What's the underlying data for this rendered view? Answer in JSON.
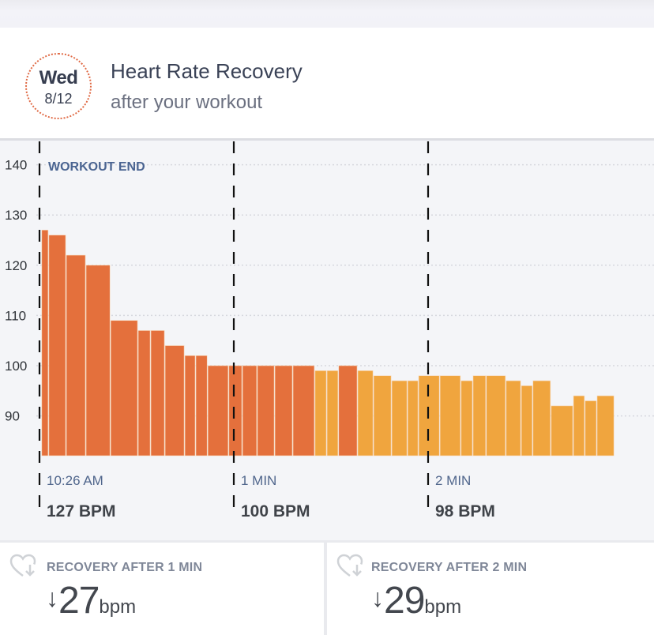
{
  "header": {
    "date_day": "Wed",
    "date_num": "8/12",
    "title": "Heart Rate Recovery",
    "subtitle": "after your workout"
  },
  "chart_data": {
    "type": "bar",
    "title": "Heart Rate Recovery",
    "xlabel": "",
    "ylabel": "BPM",
    "ylim": [
      82,
      145
    ],
    "xlim_seconds": [
      0,
      177
    ],
    "yticks": [
      140,
      130,
      120,
      110,
      100,
      90
    ],
    "grid": true,
    "annotation": "WORKOUT END",
    "markers": [
      {
        "t": 0,
        "label": "10:26 AM",
        "value_label": "127 BPM"
      },
      {
        "t": 60,
        "label": "1 MIN",
        "value_label": "100 BPM"
      },
      {
        "t": 120,
        "label": "2 MIN",
        "value_label": "98 BPM"
      }
    ],
    "colors": {
      "before_threshold": "#e4703c",
      "after_threshold": "#f0a53e"
    },
    "bars": [
      {
        "start": 0.7,
        "end": 2.9,
        "value": 127,
        "zone": "high"
      },
      {
        "start": 2.9,
        "end": 8.3,
        "value": 126,
        "zone": "high"
      },
      {
        "start": 8.3,
        "end": 14.4,
        "value": 122,
        "zone": "high"
      },
      {
        "start": 14.4,
        "end": 22.0,
        "value": 120,
        "zone": "high"
      },
      {
        "start": 22.0,
        "end": 30.5,
        "value": 109,
        "zone": "high"
      },
      {
        "start": 30.5,
        "end": 34.4,
        "value": 107,
        "zone": "high"
      },
      {
        "start": 34.4,
        "end": 38.8,
        "value": 107,
        "zone": "high"
      },
      {
        "start": 38.8,
        "end": 44.9,
        "value": 104,
        "zone": "high"
      },
      {
        "start": 44.9,
        "end": 48.3,
        "value": 102,
        "zone": "high"
      },
      {
        "start": 48.3,
        "end": 52.0,
        "value": 102,
        "zone": "high"
      },
      {
        "start": 52.0,
        "end": 58.5,
        "value": 100,
        "zone": "high"
      },
      {
        "start": 58.5,
        "end": 62.7,
        "value": 100,
        "zone": "high"
      },
      {
        "start": 62.7,
        "end": 67.3,
        "value": 100,
        "zone": "high"
      },
      {
        "start": 67.3,
        "end": 72.7,
        "value": 100,
        "zone": "high"
      },
      {
        "start": 72.7,
        "end": 78.3,
        "value": 100,
        "zone": "high"
      },
      {
        "start": 78.3,
        "end": 85.1,
        "value": 100,
        "zone": "high"
      },
      {
        "start": 85.1,
        "end": 88.8,
        "value": 99,
        "zone": "low"
      },
      {
        "start": 88.8,
        "end": 92.4,
        "value": 99,
        "zone": "low"
      },
      {
        "start": 92.4,
        "end": 98.3,
        "value": 100,
        "zone": "high"
      },
      {
        "start": 98.3,
        "end": 103.2,
        "value": 99,
        "zone": "low"
      },
      {
        "start": 103.2,
        "end": 108.8,
        "value": 98,
        "zone": "low"
      },
      {
        "start": 108.8,
        "end": 113.7,
        "value": 97,
        "zone": "low"
      },
      {
        "start": 113.7,
        "end": 117.1,
        "value": 97,
        "zone": "low"
      },
      {
        "start": 117.1,
        "end": 123.7,
        "value": 98,
        "zone": "low"
      },
      {
        "start": 123.7,
        "end": 130.2,
        "value": 98,
        "zone": "low"
      },
      {
        "start": 130.2,
        "end": 133.9,
        "value": 97,
        "zone": "low"
      },
      {
        "start": 133.9,
        "end": 138.0,
        "value": 98,
        "zone": "low"
      },
      {
        "start": 138.0,
        "end": 144.1,
        "value": 98,
        "zone": "low"
      },
      {
        "start": 144.1,
        "end": 148.8,
        "value": 97,
        "zone": "low"
      },
      {
        "start": 148.8,
        "end": 152.4,
        "value": 96,
        "zone": "low"
      },
      {
        "start": 152.4,
        "end": 158.0,
        "value": 97,
        "zone": "low"
      },
      {
        "start": 158.0,
        "end": 164.9,
        "value": 92,
        "zone": "low"
      },
      {
        "start": 164.9,
        "end": 168.5,
        "value": 94,
        "zone": "low"
      },
      {
        "start": 168.5,
        "end": 172.2,
        "value": 93,
        "zone": "low"
      },
      {
        "start": 172.2,
        "end": 177.6,
        "value": 94,
        "zone": "low"
      }
    ]
  },
  "cards": [
    {
      "label": "RECOVERY AFTER 1 MIN",
      "arrow": "↓",
      "value": "27",
      "unit": "bpm"
    },
    {
      "label": "RECOVERY AFTER 2 MIN",
      "arrow": "↓",
      "value": "29",
      "unit": "bpm"
    }
  ]
}
